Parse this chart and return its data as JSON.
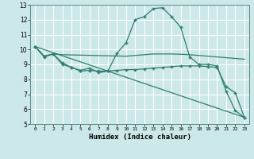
{
  "xlabel": "Humidex (Indice chaleur)",
  "background_color": "#cde8e8",
  "grid_color": "#dfffff",
  "line_color": "#2e7d6e",
  "xlim": [
    -0.5,
    23.5
  ],
  "ylim": [
    5,
    13
  ],
  "yticks": [
    5,
    6,
    7,
    8,
    9,
    10,
    11,
    12,
    13
  ],
  "xticks": [
    0,
    1,
    2,
    3,
    4,
    5,
    6,
    7,
    8,
    9,
    10,
    11,
    12,
    13,
    14,
    15,
    16,
    17,
    18,
    19,
    20,
    21,
    22,
    23
  ],
  "series": [
    {
      "x": [
        0,
        1,
        2,
        3,
        4,
        5,
        6,
        7,
        8,
        9,
        10,
        11,
        12,
        13,
        14,
        15,
        16,
        17,
        18,
        19,
        20,
        21,
        22,
        23
      ],
      "y": [
        10.2,
        9.5,
        9.7,
        9.0,
        8.8,
        8.55,
        8.6,
        8.55,
        8.55,
        9.75,
        10.45,
        12.0,
        12.2,
        12.75,
        12.8,
        12.2,
        11.5,
        9.5,
        9.0,
        9.0,
        8.9,
        7.2,
        5.9,
        5.45
      ],
      "marker": "+"
    },
    {
      "x": [
        0,
        1,
        2,
        3,
        10,
        11,
        12,
        13,
        14,
        15,
        16,
        17,
        18,
        19,
        20,
        21,
        22,
        23
      ],
      "y": [
        10.2,
        9.55,
        9.7,
        9.65,
        9.55,
        9.6,
        9.65,
        9.7,
        9.7,
        9.7,
        9.68,
        9.65,
        9.6,
        9.55,
        9.5,
        9.45,
        9.4,
        9.35
      ],
      "marker": null
    },
    {
      "x": [
        0,
        1,
        2,
        3,
        4,
        5,
        6,
        7,
        8,
        9,
        10,
        11,
        12,
        13,
        14,
        15,
        16,
        17,
        18,
        19,
        20,
        21,
        22,
        23
      ],
      "y": [
        10.2,
        9.55,
        9.7,
        9.1,
        8.8,
        8.6,
        8.75,
        8.45,
        8.55,
        8.6,
        8.65,
        8.65,
        8.7,
        8.75,
        8.8,
        8.85,
        8.9,
        8.9,
        8.9,
        8.85,
        8.8,
        7.5,
        7.1,
        5.45
      ],
      "marker": "+"
    },
    {
      "x": [
        0,
        23
      ],
      "y": [
        10.2,
        5.45
      ],
      "marker": null
    }
  ]
}
